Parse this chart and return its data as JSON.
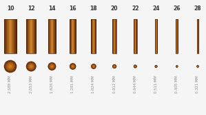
{
  "gauges": [
    10,
    12,
    14,
    16,
    18,
    20,
    22,
    24,
    26,
    28
  ],
  "diameters_mm": [
    2.588,
    2.053,
    1.628,
    1.291,
    1.024,
    0.812,
    0.644,
    0.511,
    0.405,
    0.321
  ],
  "diameter_labels": [
    "2.588 MM",
    "2.053 MM",
    "1.628 MM",
    "1.291 MM",
    "1.024 MM",
    "0.812 MM",
    "0.644 MM",
    "0.511 MM",
    "0.405 MM",
    "0.321 MM"
  ],
  "background_color": "#f5f5f5",
  "label_color": "#888888",
  "gauge_label_color": "#333333",
  "gauge_label_fontsize": 5.5,
  "mm_label_fontsize": 3.8,
  "n_wires": 10,
  "cyl_color_dark": "#6B3010",
  "cyl_color_mid": "#C07030",
  "cyl_color_light": "#D49040",
  "circ_color_dark": "#8B4010",
  "circ_color_mid": "#C07030",
  "circ_color_light": "#D4A060"
}
